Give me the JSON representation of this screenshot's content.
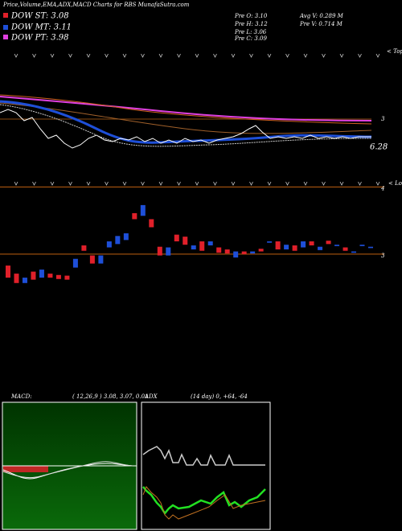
{
  "header": {
    "title": "Price,Volume,EMA,ADX,MACD Charts for RBS MunafaSutra.com",
    "dow": [
      "DOW ST: 3.08",
      "DOW MT: 3.11",
      "DOW PT: 3.98"
    ],
    "dow_colors": [
      "#e0202a",
      "#1e4fd8",
      "#e040e0"
    ],
    "prev": [
      "Pre  O: 3.10",
      "Pre  H: 3.12",
      "Pre  L: 3.06",
      "Pre  C: 3.09"
    ],
    "volume": [
      "Avg V: 0.289 M",
      "Pre   V: 0.714  M"
    ]
  },
  "top_panel": {
    "tops": "< Tops",
    "level": "3",
    "last": "6.28"
  },
  "chart_data": {
    "type": "candlestick",
    "lows_label": "< Lows",
    "candles": {
      "open": [
        2.83,
        2.71,
        2.57,
        2.74,
        2.65,
        2.71,
        2.69,
        2.68,
        2.8,
        3.13,
        2.98,
        2.86,
        3.1,
        3.15,
        3.21,
        3.61,
        3.57,
        3.52,
        3.11,
        2.98,
        3.29,
        3.26,
        3.07,
        3.19,
        3.13,
        3.1,
        3.07,
        2.95,
        3.04,
        3.01,
        3.08,
        3.17,
        3.19,
        3.07,
        3.13,
        3.1,
        3.19,
        3.06,
        3.2,
        3.12,
        3.1,
        3.02,
        3.12,
        3.09
      ],
      "close": [
        2.65,
        2.57,
        2.65,
        2.62,
        2.77,
        2.65,
        2.63,
        2.62,
        2.93,
        3.05,
        2.86,
        2.98,
        3.19,
        3.27,
        3.31,
        3.52,
        3.73,
        3.4,
        2.98,
        3.1,
        3.19,
        3.14,
        3.13,
        3.05,
        3.19,
        3.02,
        3.01,
        3.04,
        3.0,
        3.04,
        3.04,
        3.19,
        3.07,
        3.14,
        3.05,
        3.19,
        3.13,
        3.11,
        3.15,
        3.14,
        3.05,
        3.04,
        3.14,
        3.11
      ]
    },
    "up_color": "#1e4fd8",
    "down_color": "#e0202a",
    "grid_color": "#c06010",
    "ylim": [
      2.4,
      4.1
    ],
    "yticks": [
      3,
      4
    ]
  },
  "macd": {
    "label": "MACD:",
    "params": "( 12,26,9 ) 3.08, 3.07, 0.01"
  },
  "adx": {
    "label": "ADX",
    "params": "(14 day) 0, +64, -64"
  }
}
